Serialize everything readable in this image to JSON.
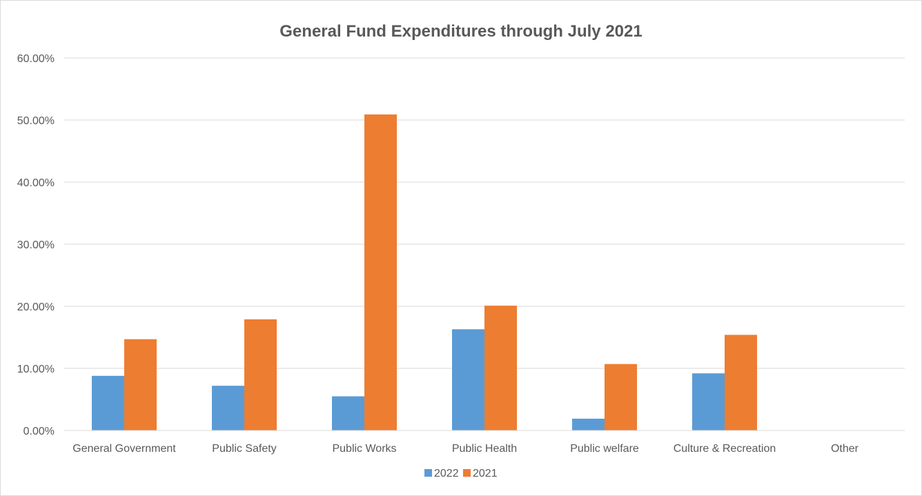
{
  "chart_data": {
    "type": "bar",
    "title": "General Fund Expenditures through July 2021",
    "xlabel": "",
    "ylabel": "",
    "categories": [
      "General Government",
      "Public Safety",
      "Public Works",
      "Public Health",
      "Public welfare",
      "Culture & Recreation",
      "Other"
    ],
    "series": [
      {
        "name": "2022",
        "values": [
          8.8,
          7.2,
          5.5,
          16.3,
          1.9,
          9.2,
          0
        ],
        "color": "#5b9bd5"
      },
      {
        "name": "2021",
        "values": [
          14.7,
          17.9,
          50.9,
          20.1,
          10.7,
          15.4,
          0
        ],
        "color": "#ed7d31"
      }
    ],
    "ylim": [
      0,
      60
    ],
    "yticks": [
      0,
      10,
      20,
      30,
      40,
      50,
      60
    ],
    "ytick_labels": [
      "0.00%",
      "10.00%",
      "20.00%",
      "30.00%",
      "40.00%",
      "50.00%",
      "60.00%"
    ],
    "grid": true,
    "gridline_color": "#d9d9d9",
    "legend_position": "bottom"
  }
}
